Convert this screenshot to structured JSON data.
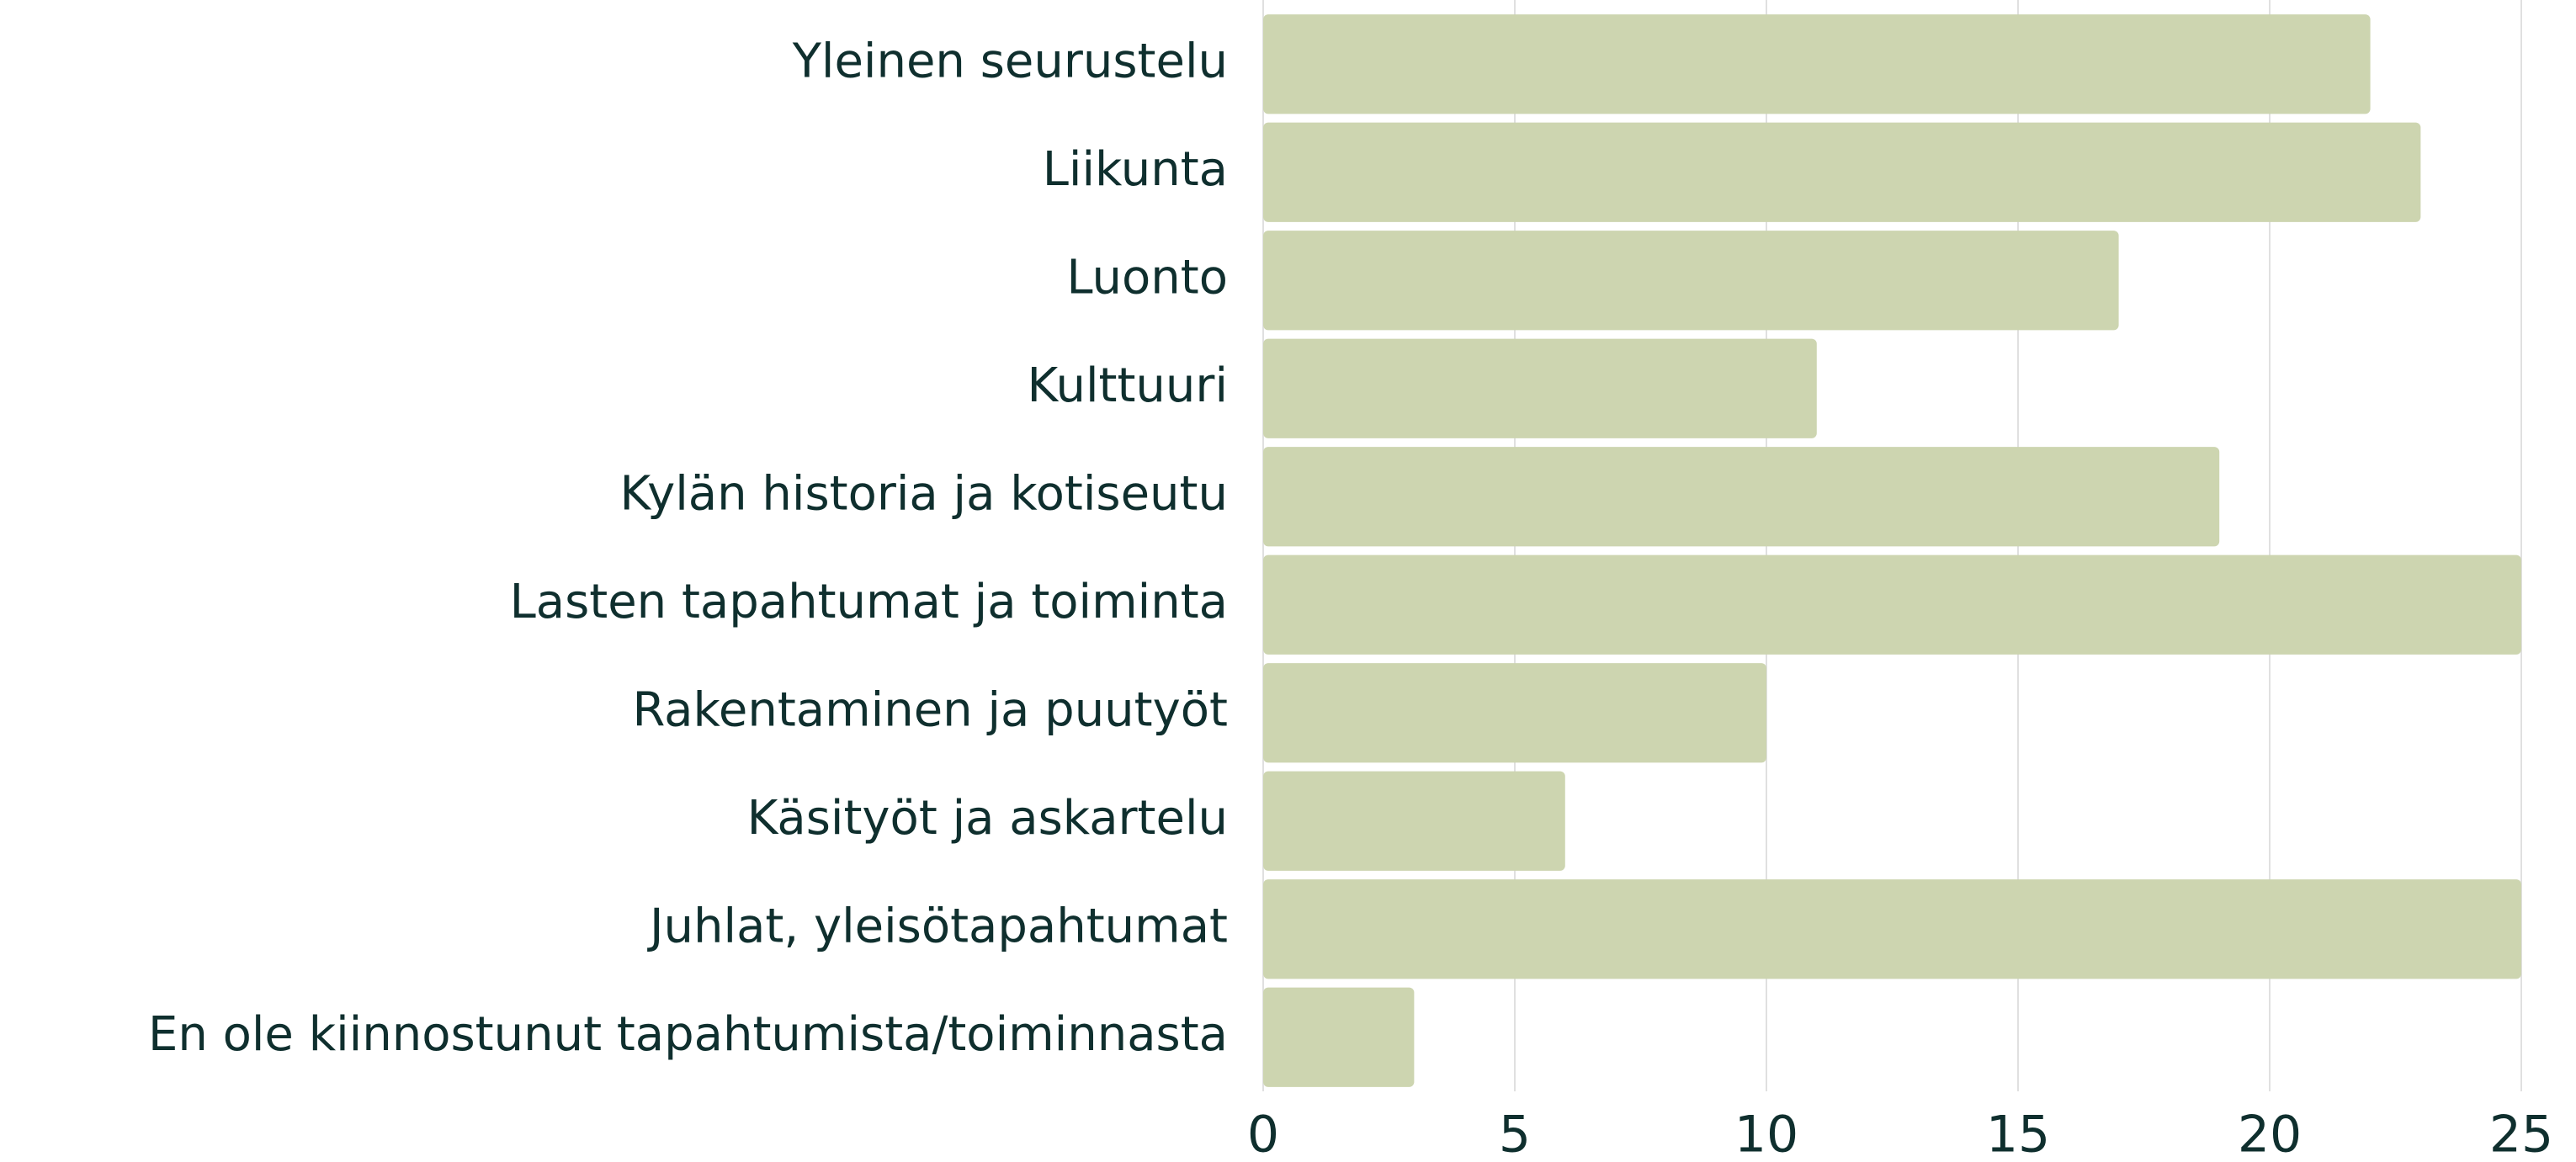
{
  "chart_data": {
    "type": "bar",
    "orientation": "horizontal",
    "categories": [
      "Yleinen seurustelu",
      "Liikunta",
      "Luonto",
      "Kulttuuri",
      "Kylän historia ja kotiseutu",
      "Lasten tapahtumat ja toiminta",
      "Rakentaminen ja puutyöt",
      "Käsityöt ja askartelu",
      "Juhlat, yleisötapahtumat",
      "En ole kiinnostunut tapahtumista/toiminnasta"
    ],
    "values": [
      22,
      23,
      17,
      11,
      19,
      25,
      10,
      6,
      25,
      3
    ],
    "color": "#cdd5b0",
    "xlim": [
      0,
      25
    ],
    "xticks": [
      0,
      5,
      10,
      15,
      20,
      25
    ],
    "grid": true
  }
}
